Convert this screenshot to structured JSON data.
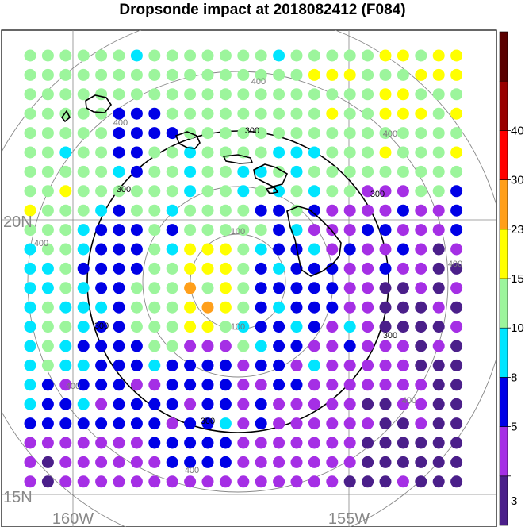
{
  "title": "Dropsonde impact at 2018082412 (F084)",
  "map": {
    "lat_labels": [
      "20N",
      "15N"
    ],
    "lon_labels": [
      "160W",
      "155W"
    ],
    "ring_labels": {
      "r100": "100",
      "r300": "300",
      "r400": "400"
    }
  },
  "colorbar": {
    "labels": [
      "3",
      "5",
      "8",
      "10",
      "15",
      "23",
      "30",
      "40"
    ],
    "colors": [
      "#4b1f8a",
      "#a52fe5",
      "#0000e6",
      "#00e5ff",
      "#9cf59c",
      "#ffff00",
      "#ff9f1a",
      "#ff0000",
      "#990000",
      "#5a0000"
    ]
  },
  "grid_data": {
    "description_colors": {
      "0": "#4b1f8a",
      "1": "#a52fe5",
      "2": "#0000e6",
      "3": "#00e5ff",
      "4": "#9cf59c",
      "5": "#ffff00",
      "6": "#ff9f1a"
    },
    "rows": [
      "4444443444444434444455455",
      "4444444444444444555444555",
      "4444444444444444444455444",
      "4444422244444444454455545",
      "4444422224444444444444444",
      "4434422443444433344454445",
      "4444432443443343444444444",
      "4454444443443434344111442",
      "5444324434444224211112112",
      "4443222424444423111221112",
      "3443222435554322312112101",
      "3342222445554232221121100",
      "3343224446454222221100101",
      "3433324445654232221100010",
      "3443224445543223213100001",
      "3432222441114322112111010",
      "3433222322221221311111000",
      "3212221122221122111111100",
      "3223122221221211111001100",
      "2222222212231211111100100",
      "1111111222221111111000000",
      "1011111122221111111000000",
      "1011111111111111110001000"
    ]
  }
}
